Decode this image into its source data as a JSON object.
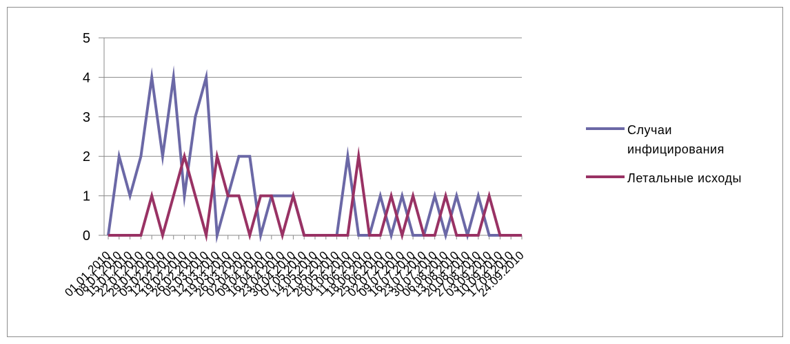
{
  "chart_data": {
    "type": "line",
    "title": "",
    "xlabel": "",
    "ylabel": "",
    "ylim": [
      0,
      5
    ],
    "yticks": [
      0,
      1,
      2,
      3,
      4,
      5
    ],
    "grid": true,
    "legend_position": "right",
    "x": [
      "01.01.2010",
      "08.01.2010",
      "15.01.2010",
      "22.01.2010",
      "29.01.2010",
      "05.02.2010",
      "12.02.2010",
      "19.02.2010",
      "26.02.2010",
      "05.03.2010",
      "12.03.2010",
      "19.03.2010",
      "26.03.2010",
      "02.04.2010",
      "09.04.2010",
      "16.04.2010",
      "23.04.2010",
      "30.04.2010",
      "07.05.2010",
      "14.05.2010",
      "21.05.2010",
      "28.05.2010",
      "04.06.2010",
      "11.06.2010",
      "18.06.2010",
      "25.06.2010",
      "02.07.2010",
      "09.07.2010",
      "16.07.2010",
      "23.07.2010",
      "30.07.2010",
      "06.08.2010",
      "13.08.2010",
      "20.08.2010",
      "27.08.2010",
      "03.09.2010",
      "10.09.2010",
      "17.09.2010",
      "24.09.2010"
    ],
    "series": [
      {
        "name": "Случаи инфицирования",
        "color": "#6b68a6",
        "values": [
          0,
          2,
          1,
          2,
          4,
          2,
          4,
          1,
          3,
          4,
          0,
          1,
          2,
          2,
          0,
          1,
          1,
          1,
          0,
          0,
          0,
          0,
          2,
          0,
          0,
          1,
          0,
          1,
          0,
          0,
          1,
          0,
          1,
          0,
          1,
          0,
          0,
          0,
          0
        ]
      },
      {
        "name": "Летальные исходы",
        "color": "#993264",
        "values": [
          0,
          0,
          0,
          0,
          1,
          0,
          1,
          2,
          1,
          0,
          2,
          1,
          1,
          0,
          1,
          1,
          0,
          1,
          0,
          0,
          0,
          0,
          0,
          2,
          0,
          0,
          1,
          0,
          1,
          0,
          0,
          1,
          0,
          0,
          0,
          1,
          0,
          0,
          0
        ]
      }
    ]
  }
}
